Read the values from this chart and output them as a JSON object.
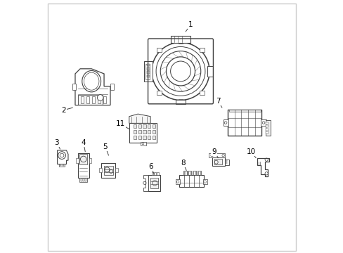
{
  "background_color": "#ffffff",
  "border_color": "#cccccc",
  "line_color": "#404040",
  "label_color": "#000000",
  "figsize": [
    4.89,
    3.6
  ],
  "dpi": 100,
  "label_positions": {
    "1": [
      0.575,
      0.905,
      0.555,
      0.878
    ],
    "2": [
      0.068,
      0.565,
      0.105,
      0.575
    ],
    "3": [
      0.042,
      0.435,
      0.055,
      0.41
    ],
    "4": [
      0.148,
      0.435,
      0.155,
      0.4
    ],
    "5": [
      0.235,
      0.42,
      0.248,
      0.385
    ],
    "6": [
      0.415,
      0.34,
      0.43,
      0.31
    ],
    "7": [
      0.685,
      0.6,
      0.7,
      0.575
    ],
    "8": [
      0.545,
      0.355,
      0.558,
      0.325
    ],
    "9": [
      0.668,
      0.4,
      0.685,
      0.375
    ],
    "10": [
      0.815,
      0.4,
      0.835,
      0.375
    ],
    "11": [
      0.295,
      0.51,
      0.33,
      0.49
    ]
  }
}
